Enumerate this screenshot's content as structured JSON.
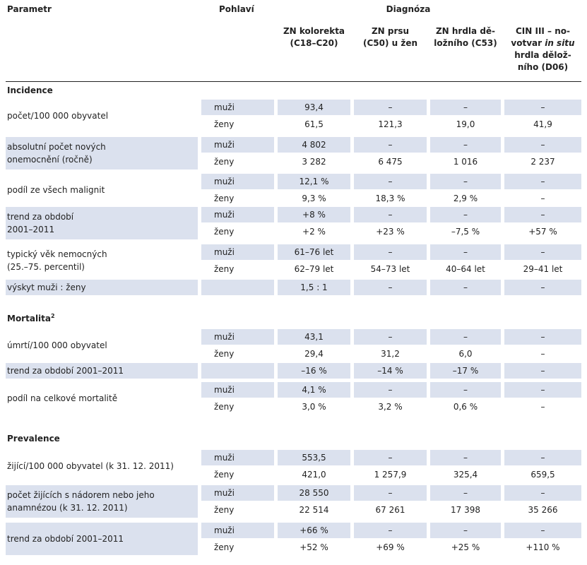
{
  "header": {
    "parametr": "Parametr",
    "pohlavi": "Pohlaví",
    "diagnoza": "Diagnóza",
    "cols": [
      [
        "ZN kolorekta",
        "(C18–C20)"
      ],
      [
        "ZN prsu",
        "(C50) u žen"
      ],
      [
        "ZN hrdla dě-",
        "ložního (C53)"
      ],
      [
        "CIN III – no-",
        "votvar <i>in situ</i>",
        "hrdla dělož-",
        "ního (D06)"
      ]
    ]
  },
  "sections": {
    "incidence": "Incidence",
    "mortalita": "Mortalita",
    "mortalita_sup": "2",
    "prevalence": "Prevalence"
  },
  "rows": [
    {
      "id": "r1",
      "label": [
        "počet/100 000 obyvatel"
      ],
      "sex": [
        "muži",
        "ženy"
      ],
      "values": [
        [
          "93,4",
          "–",
          "–",
          "–"
        ],
        [
          "61,5",
          "121,3",
          "19,0",
          "41,9"
        ]
      ]
    },
    {
      "id": "r2",
      "label": [
        "absolutní počet nových",
        "onemocnění (ročně)"
      ],
      "sex": [
        "muži",
        "ženy"
      ],
      "values": [
        [
          "4 802",
          "–",
          "–",
          "–"
        ],
        [
          "3 282",
          "6 475",
          "1 016",
          "2 237"
        ]
      ]
    },
    {
      "id": "r3",
      "label": [
        "podíl ze všech malignit"
      ],
      "sex": [
        "muži",
        "ženy"
      ],
      "values": [
        [
          "12,1 %",
          "–",
          "–",
          "–"
        ],
        [
          "9,3 %",
          "18,3 %",
          "2,9 %",
          "–"
        ]
      ]
    },
    {
      "id": "r4",
      "label": [
        "trend za období",
        "2001–2011"
      ],
      "sex": [
        "muži",
        "ženy"
      ],
      "values": [
        [
          "+8 %",
          "–",
          "–",
          "–"
        ],
        [
          "+2 %",
          "+23 %",
          "–7,5 %",
          "+57 %"
        ]
      ]
    },
    {
      "id": "r5",
      "label": [
        "typický věk nemocných",
        "(25.–75. percentil)"
      ],
      "sex": [
        "muži",
        "ženy"
      ],
      "values": [
        [
          "61–76 let",
          "–",
          "–",
          "–"
        ],
        [
          "62–79 let",
          "54–73 let",
          "40–64 let",
          "29–41 let"
        ]
      ]
    },
    {
      "id": "r6",
      "label": [
        "výskyt muži : ženy"
      ],
      "sex": [
        ""
      ],
      "values": [
        [
          "1,5 : 1",
          "–",
          "–",
          "–"
        ]
      ]
    },
    {
      "id": "r7",
      "label": [
        "úmrtí/100 000 obyvatel"
      ],
      "sex": [
        "muži",
        "ženy"
      ],
      "values": [
        [
          "43,1",
          "–",
          "–",
          "–"
        ],
        [
          "29,4",
          "31,2",
          "6,0",
          "–"
        ]
      ]
    },
    {
      "id": "r8",
      "label": [
        "trend za období 2001–2011"
      ],
      "sex": [
        ""
      ],
      "values": [
        [
          "–16 %",
          "–14 %",
          "–17 %",
          "–"
        ]
      ]
    },
    {
      "id": "r9",
      "label": [
        "podíl na celkové mortalitě"
      ],
      "sex": [
        "muži",
        "ženy"
      ],
      "values": [
        [
          "4,1 %",
          "–",
          "–",
          "–"
        ],
        [
          "3,0 %",
          "3,2 %",
          "0,6 %",
          "–"
        ]
      ]
    },
    {
      "id": "r10",
      "label": [
        "žijící/100 000 obyvatel (k 31. 12. 2011)"
      ],
      "sex": [
        "muži",
        "ženy"
      ],
      "values": [
        [
          "553,5",
          "–",
          "–",
          "–"
        ],
        [
          "421,0",
          "1 257,9",
          "325,4",
          "659,5"
        ]
      ]
    },
    {
      "id": "r11",
      "label": [
        "počet žijících s nádorem nebo jeho",
        "anamnézou (k 31. 12. 2011)"
      ],
      "sex": [
        "muži",
        "ženy"
      ],
      "values": [
        [
          "28 550",
          "–",
          "–",
          "–"
        ],
        [
          "22 514",
          "67 261",
          "17 398",
          "35 266"
        ]
      ]
    },
    {
      "id": "r12",
      "label": [
        "trend za období 2001–2011"
      ],
      "sex": [
        "muži",
        "ženy"
      ],
      "values": [
        [
          "+66 %",
          "–",
          "–",
          "–"
        ],
        [
          "+52 %",
          "+69 %",
          "+25 %",
          "+110 %"
        ]
      ]
    }
  ]
}
